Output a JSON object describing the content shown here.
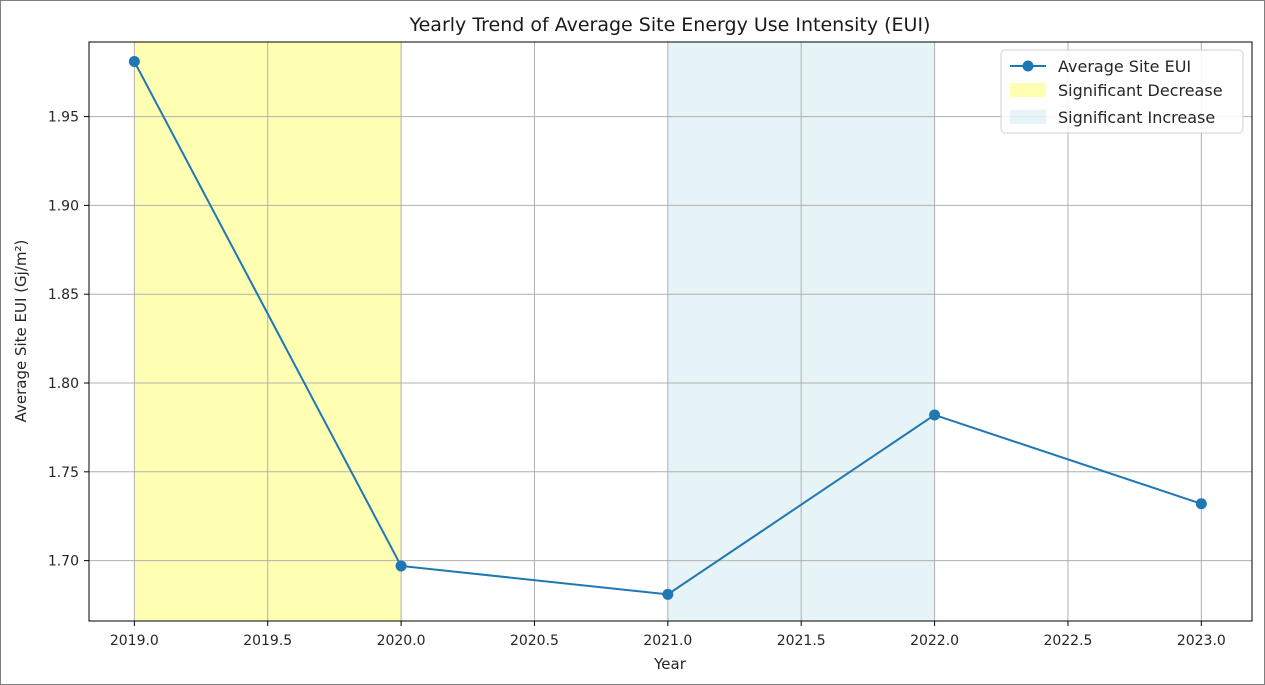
{
  "chart_data": {
    "type": "line",
    "title": "Yearly Trend of Average Site Energy Use Intensity (EUI)",
    "xlabel": "Year",
    "ylabel": "Average Site EUI (Gj/m²)",
    "xlim": [
      2018.83,
      2023.19
    ],
    "ylim": [
      1.666,
      1.992
    ],
    "x_ticks": [
      "2019.0",
      "2019.5",
      "2020.0",
      "2020.5",
      "2021.0",
      "2021.5",
      "2022.0",
      "2022.5",
      "2023.0"
    ],
    "y_ticks": [
      "1.70",
      "1.75",
      "1.80",
      "1.85",
      "1.90",
      "1.95"
    ],
    "grid": true,
    "legend_position": "top-right",
    "series": [
      {
        "name": "Average Site EUI",
        "x": [
          2019,
          2020,
          2021,
          2022,
          2023
        ],
        "y": [
          1.981,
          1.697,
          1.681,
          1.782,
          1.732
        ],
        "color": "#1f77b4",
        "marker": "circle"
      }
    ],
    "spans": [
      {
        "name": "Significant Decrease",
        "x_start": 2019,
        "x_end": 2020,
        "color": "#ffff99",
        "opacity": 0.75
      },
      {
        "name": "Significant Increase",
        "x_start": 2021,
        "x_end": 2022,
        "color": "#add8e6",
        "opacity": 0.3
      }
    ]
  }
}
